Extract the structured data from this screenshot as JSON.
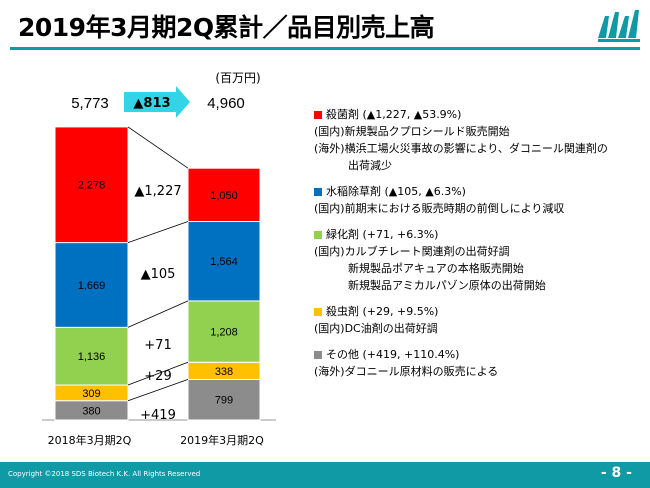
{
  "page": {
    "title": "2019年3月期2Q累計／品目別売上高",
    "unit": "(百万円)",
    "copyright": "Copyright ©2018 SDS Biotech K.K. All Rights Reserved",
    "page_number": "- 8 -"
  },
  "chart_data": {
    "type": "bar",
    "stacked": true,
    "categories": [
      "2018年3月期2Q",
      "2019年3月期2Q"
    ],
    "series": [
      {
        "name": "その他",
        "values": [
          380,
          799
        ],
        "color": "#8c8c8c",
        "change": "+419"
      },
      {
        "name": "殺虫剤",
        "values": [
          309,
          338
        ],
        "color": "#ffc000",
        "change": "+29"
      },
      {
        "name": "緑化剤",
        "values": [
          1136,
          1208
        ],
        "color": "#92d050",
        "change": "+71"
      },
      {
        "name": "水稲除草剤",
        "values": [
          1669,
          1564
        ],
        "color": "#0070c0",
        "change": "▲105"
      },
      {
        "name": "殺菌剤",
        "values": [
          2278,
          1050
        ],
        "color": "#ff0000",
        "change": "▲1,227"
      }
    ],
    "totals": [
      "5,773",
      "4,960"
    ],
    "total_change": "▲813",
    "ylim": [
      0,
      6200
    ]
  },
  "notes": [
    {
      "color": "#ff0000",
      "head": "殺菌剤 (▲1,227, ▲53.9%)",
      "lines": [
        {
          "text": "(国内)新規製品クプロシールド販売開始",
          "indent": false
        },
        {
          "text": "(海外)横浜工場火災事故の影響により、ダコニール関連剤の",
          "indent": false
        },
        {
          "text": "出荷減少",
          "indent": true
        }
      ]
    },
    {
      "color": "#0070c0",
      "head": "水稲除草剤 (▲105, ▲6.3%)",
      "lines": [
        {
          "text": "(国内)前期末における販売時期の前倒しにより減収",
          "indent": false
        }
      ]
    },
    {
      "color": "#92d050",
      "head": "緑化剤 (+71, +6.3%)",
      "lines": [
        {
          "text": "(国内)カルブチレート関連剤の出荷好調",
          "indent": false
        },
        {
          "text": "新規製品ポアキュアの本格販売開始",
          "indent": true
        },
        {
          "text": "新規製品アミカルパゾン原体の出荷開始",
          "indent": true
        }
      ]
    },
    {
      "color": "#ffc000",
      "head": "殺虫剤 (+29, +9.5%)",
      "lines": [
        {
          "text": "(国内)DC油剤の出荷好調",
          "indent": false
        }
      ]
    },
    {
      "color": "#8c8c8c",
      "head": "その他 (+419, +110.4%)",
      "lines": [
        {
          "text": "(海外)ダコニール原材料の販売による",
          "indent": false
        }
      ]
    }
  ]
}
